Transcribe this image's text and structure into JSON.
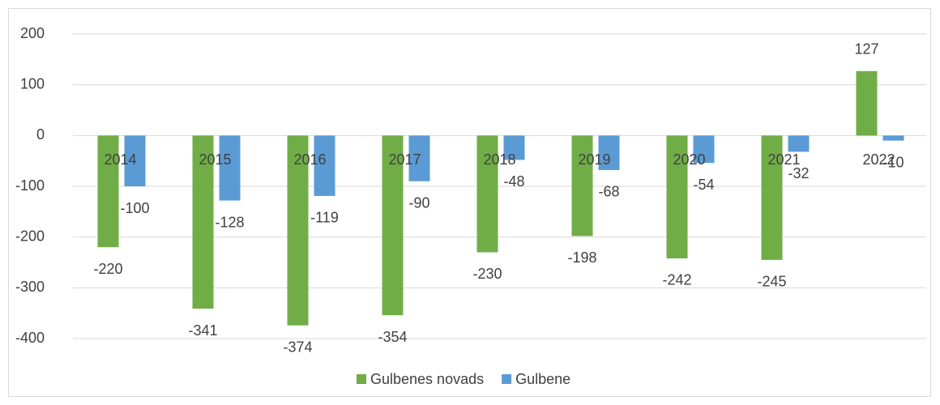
{
  "chart_data": {
    "type": "bar",
    "categories": [
      "2014",
      "2015",
      "2016",
      "2017",
      "2018",
      "2019",
      "2020",
      "2021",
      "2022"
    ],
    "series": [
      {
        "name": "Gulbenes novads",
        "color": "#70ad47",
        "values": [
          -220,
          -341,
          -374,
          -354,
          -230,
          -198,
          -242,
          -245,
          127
        ]
      },
      {
        "name": "Gulbene",
        "color": "#5b9bd5",
        "values": [
          -100,
          -128,
          -119,
          -90,
          -48,
          -68,
          -54,
          -32,
          -10
        ]
      }
    ],
    "ylim": [
      -400,
      200
    ],
    "yticks": [
      -400,
      -300,
      -200,
      -100,
      0,
      100,
      200
    ],
    "grid": true,
    "legend": "bottom"
  }
}
